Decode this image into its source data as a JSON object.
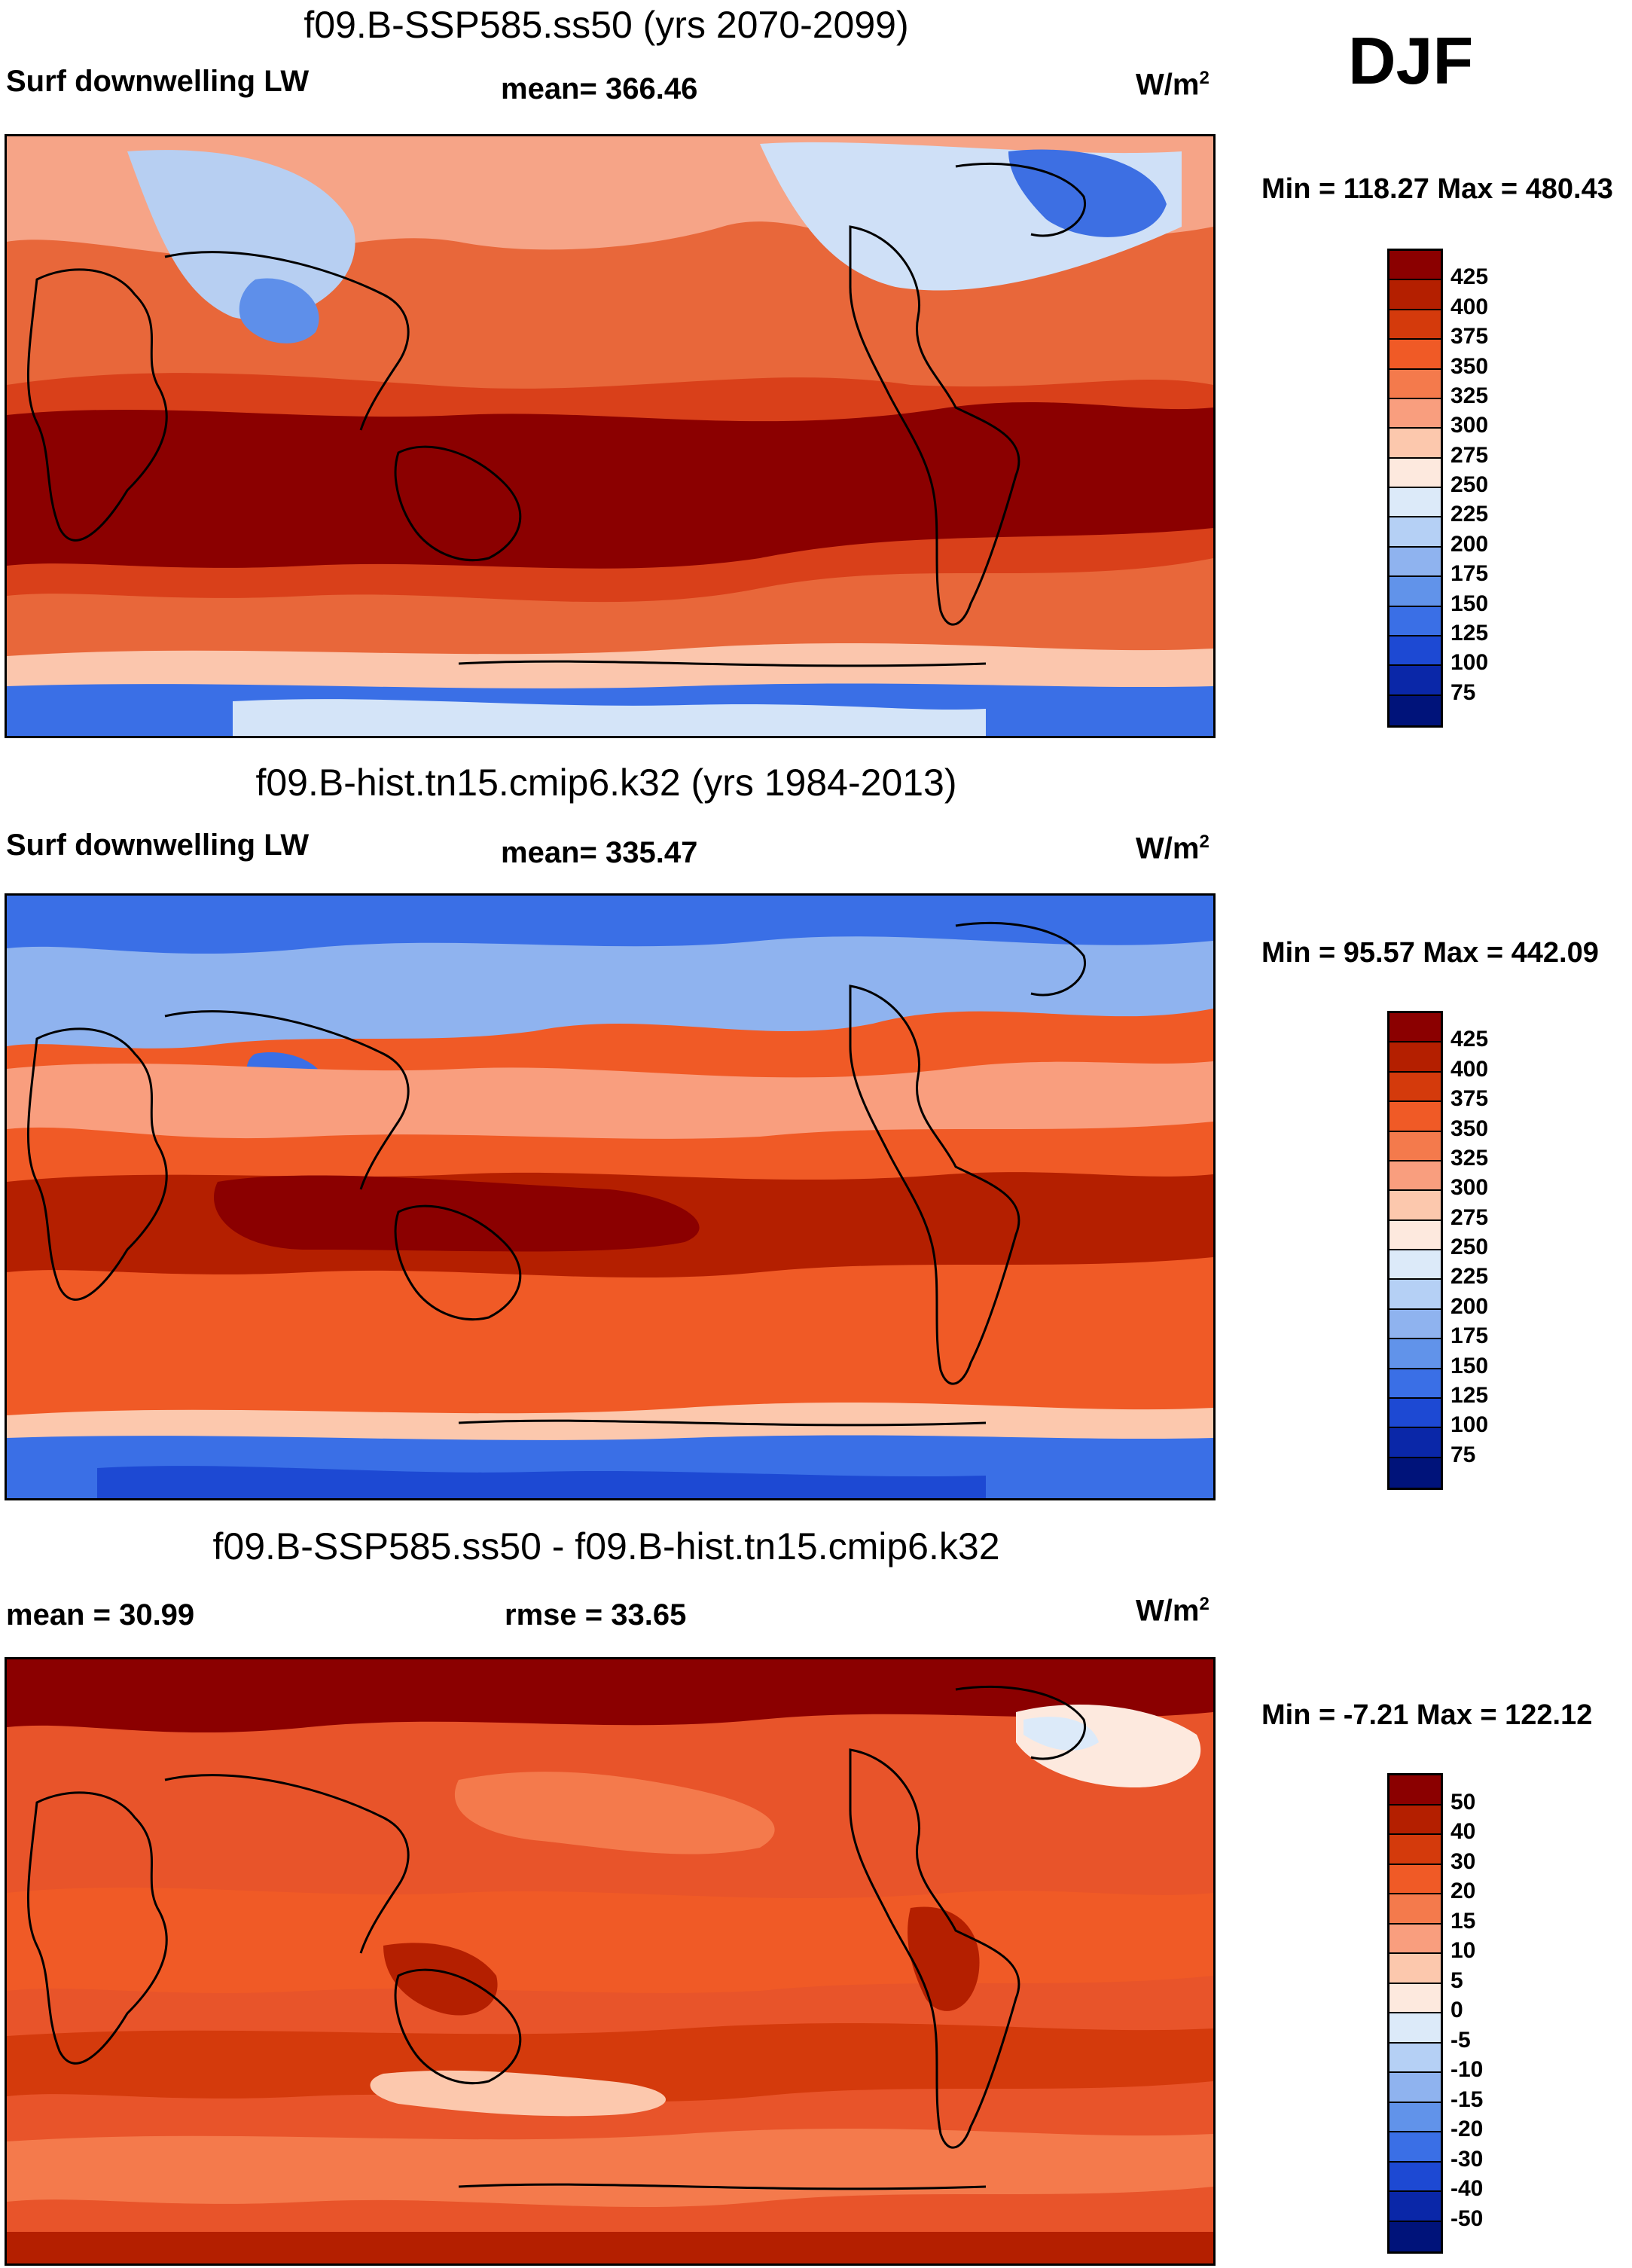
{
  "season": "DJF",
  "units": {
    "text": "W/m",
    "sup": "2"
  },
  "panels": [
    {
      "title": "f09.B-SSP585.ss50 (yrs 2070-2099)",
      "left_label": "Surf downwelling LW",
      "center_label": "mean= 366.46",
      "min_max": "Min = 118.27 Max = 480.43",
      "colorbar": {
        "ticks": [
          "425",
          "400",
          "375",
          "350",
          "325",
          "300",
          "275",
          "250",
          "225",
          "200",
          "175",
          "150",
          "125",
          "100",
          "75"
        ],
        "colors": [
          "#8b0000",
          "#b41f00",
          "#d43a0c",
          "#f05a26",
          "#f47a4c",
          "#f99e7e",
          "#fcc8ad",
          "#fde9de",
          "#dceaf9",
          "#b5d0f5",
          "#8fb3ef",
          "#6193ea",
          "#3a6fe6",
          "#1d49d3",
          "#0a27a8",
          "#00137a"
        ]
      }
    },
    {
      "title": "f09.B-hist.tn15.cmip6.k32 (yrs 1984-2013)",
      "left_label": "Surf downwelling LW",
      "center_label": "mean= 335.47",
      "min_max": "Min =  95.57 Max = 442.09",
      "colorbar": {
        "ticks": [
          "425",
          "400",
          "375",
          "350",
          "325",
          "300",
          "275",
          "250",
          "225",
          "200",
          "175",
          "150",
          "125",
          "100",
          "75"
        ],
        "colors": [
          "#8b0000",
          "#b41f00",
          "#d43a0c",
          "#f05a26",
          "#f47a4c",
          "#f99e7e",
          "#fcc8ad",
          "#fde9de",
          "#dceaf9",
          "#b5d0f5",
          "#8fb3ef",
          "#6193ea",
          "#3a6fe6",
          "#1d49d3",
          "#0a27a8",
          "#00137a"
        ]
      }
    },
    {
      "title": "f09.B-SSP585.ss50 - f09.B-hist.tn15.cmip6.k32",
      "left_label": "mean =  30.99",
      "center_label": "rmse =  33.65",
      "min_max": "Min =  -7.21 Max = 122.12",
      "colorbar": {
        "ticks": [
          "50",
          "40",
          "30",
          "20",
          "15",
          "10",
          "5",
          "0",
          "-5",
          "-10",
          "-15",
          "-20",
          "-30",
          "-40",
          "-50"
        ],
        "colors": [
          "#8b0000",
          "#b41f00",
          "#d43a0c",
          "#f05a26",
          "#f47a4c",
          "#f99e7e",
          "#fcc8ad",
          "#fde9de",
          "#dceaf9",
          "#b5d0f5",
          "#8fb3ef",
          "#6193ea",
          "#3a6fe6",
          "#1d49d3",
          "#0a27a8",
          "#00137a"
        ]
      }
    }
  ]
}
